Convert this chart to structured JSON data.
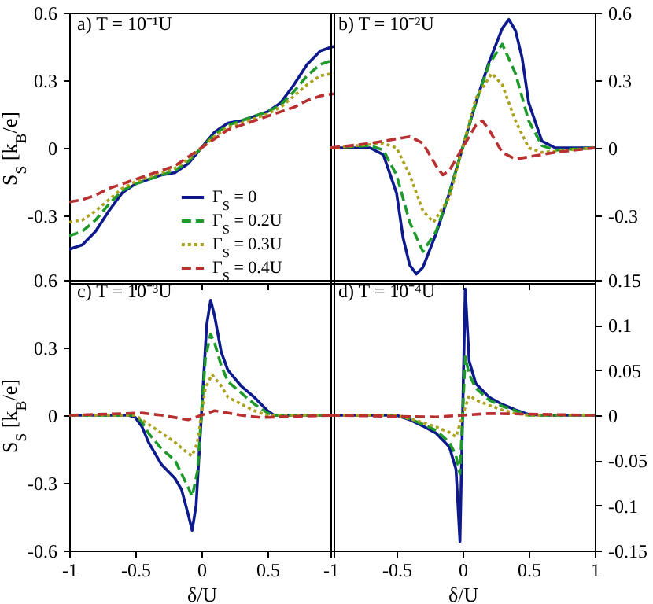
{
  "chart_data": [
    {
      "type": "line",
      "title": "a) T = 10⁻¹U",
      "ylabel": "S$_{S}$ [k$_{B}$/e]",
      "xlim": [
        -1,
        1
      ],
      "xticks": [
        -1,
        -0.5,
        0,
        0.5,
        1
      ],
      "ylim": [
        -0.6,
        0.6
      ],
      "yticks": [
        -0.3,
        0,
        0.3,
        0.6
      ],
      "tick_labels": "y",
      "legend": "bottom right",
      "series": [
        {
          "name": "Γ$_{S}$ = 0",
          "color": "#0d1a8c",
          "line_style": "solid",
          "x": [
            -1,
            -0.9,
            -0.8,
            -0.7,
            -0.6,
            -0.5,
            -0.4,
            -0.3,
            -0.2,
            -0.1,
            0,
            0.1,
            0.2,
            0.3,
            0.4,
            0.5,
            0.6,
            0.7,
            0.8,
            0.9,
            1
          ],
          "values": [
            -0.45,
            -0.43,
            -0.37,
            -0.28,
            -0.2,
            -0.16,
            -0.14,
            -0.12,
            -0.11,
            -0.07,
            0,
            0.07,
            0.11,
            0.12,
            0.14,
            0.16,
            0.2,
            0.28,
            0.37,
            0.43,
            0.45
          ]
        },
        {
          "name": "Γ$_{S}$ = 0.2U",
          "color": "#1f9a2a",
          "line_style": "dashed",
          "x": [
            -1,
            -0.9,
            -0.8,
            -0.7,
            -0.6,
            -0.5,
            -0.4,
            -0.3,
            -0.2,
            -0.1,
            0,
            0.1,
            0.2,
            0.3,
            0.4,
            0.5,
            0.6,
            0.7,
            0.8,
            0.9,
            1
          ],
          "values": [
            -0.39,
            -0.37,
            -0.32,
            -0.25,
            -0.19,
            -0.16,
            -0.14,
            -0.12,
            -0.1,
            -0.06,
            0,
            0.06,
            0.1,
            0.12,
            0.14,
            0.16,
            0.19,
            0.25,
            0.32,
            0.37,
            0.39
          ]
        },
        {
          "name": "Γ$_{S}$ = 0.3U",
          "color": "#aaa21c",
          "line_style": "dotted",
          "x": [
            -1,
            -0.9,
            -0.8,
            -0.7,
            -0.6,
            -0.5,
            -0.4,
            -0.3,
            -0.2,
            -0.1,
            0,
            0.1,
            0.2,
            0.3,
            0.4,
            0.5,
            0.6,
            0.7,
            0.8,
            0.9,
            1
          ],
          "values": [
            -0.33,
            -0.32,
            -0.28,
            -0.23,
            -0.18,
            -0.15,
            -0.13,
            -0.11,
            -0.09,
            -0.05,
            0,
            0.05,
            0.09,
            0.11,
            0.13,
            0.15,
            0.18,
            0.23,
            0.28,
            0.32,
            0.33
          ]
        },
        {
          "name": "Γ$_{S}$ = 0.4U",
          "color": "#b83030",
          "line_style": "dashed",
          "x": [
            -1,
            -0.9,
            -0.8,
            -0.7,
            -0.6,
            -0.5,
            -0.4,
            -0.3,
            -0.2,
            -0.1,
            0,
            0.1,
            0.2,
            0.3,
            0.4,
            0.5,
            0.6,
            0.7,
            0.8,
            0.9,
            1
          ],
          "values": [
            -0.24,
            -0.23,
            -0.21,
            -0.18,
            -0.16,
            -0.14,
            -0.12,
            -0.1,
            -0.08,
            -0.04,
            0,
            0.04,
            0.08,
            0.1,
            0.12,
            0.14,
            0.16,
            0.18,
            0.21,
            0.23,
            0.24
          ]
        }
      ]
    },
    {
      "type": "line",
      "title": "b) T = 10⁻²U",
      "xlim": [
        -1,
        1
      ],
      "xticks": [
        -1,
        -0.5,
        0,
        0.5,
        1
      ],
      "ylim": [
        -0.6,
        0.6
      ],
      "yticks": [
        -0.3,
        0,
        0.3,
        0.6
      ],
      "tick_labels": "y",
      "series": [
        {
          "color": "#0d1a8c",
          "line_style": "solid",
          "x": [
            -1,
            -0.7,
            -0.6,
            -0.5,
            -0.45,
            -0.4,
            -0.35,
            -0.3,
            -0.2,
            -0.1,
            0,
            0.1,
            0.2,
            0.3,
            0.35,
            0.4,
            0.45,
            0.5,
            0.6,
            0.7,
            1
          ],
          "values": [
            0,
            0,
            -0.03,
            -0.2,
            -0.4,
            -0.52,
            -0.56,
            -0.53,
            -0.38,
            -0.2,
            0,
            0.2,
            0.38,
            0.53,
            0.57,
            0.52,
            0.4,
            0.2,
            0.03,
            0,
            0
          ]
        },
        {
          "color": "#1f9a2a",
          "line_style": "dashed",
          "x": [
            -1,
            -0.7,
            -0.6,
            -0.5,
            -0.4,
            -0.3,
            -0.2,
            -0.1,
            0,
            0.1,
            0.2,
            0.3,
            0.4,
            0.5,
            0.6,
            0.7,
            1
          ],
          "values": [
            0,
            0.01,
            -0.01,
            -0.12,
            -0.33,
            -0.46,
            -0.37,
            -0.2,
            0,
            0.2,
            0.37,
            0.46,
            0.33,
            0.12,
            0.01,
            -0.01,
            0
          ]
        },
        {
          "color": "#aaa21c",
          "line_style": "dotted",
          "x": [
            -1,
            -0.8,
            -0.6,
            -0.5,
            -0.4,
            -0.3,
            -0.22,
            -0.1,
            0,
            0.1,
            0.22,
            0.3,
            0.4,
            0.5,
            0.6,
            0.8,
            1
          ],
          "values": [
            0,
            0.01,
            0.02,
            0,
            -0.12,
            -0.28,
            -0.33,
            -0.22,
            0,
            0.22,
            0.33,
            0.28,
            0.12,
            0,
            -0.02,
            -0.01,
            0
          ]
        },
        {
          "color": "#b83030",
          "line_style": "dashed",
          "x": [
            -1,
            -0.7,
            -0.5,
            -0.4,
            -0.3,
            -0.2,
            -0.15,
            -0.1,
            0,
            0.1,
            0.15,
            0.2,
            0.3,
            0.4,
            0.5,
            0.7,
            1
          ],
          "values": [
            0,
            0.02,
            0.04,
            0.05,
            0.02,
            -0.08,
            -0.12,
            -0.1,
            0,
            0.1,
            0.12,
            0.08,
            -0.02,
            -0.05,
            -0.04,
            -0.02,
            0
          ]
        }
      ]
    },
    {
      "type": "line",
      "title": "c) T = 10⁻³U",
      "xlabel": "δ/U",
      "ylabel": "S$_{S}$ [k$_{B}$/e]",
      "xlim": [
        -1,
        1
      ],
      "xticks": [
        -1,
        -0.5,
        0,
        0.5,
        {
          "value": 1,
          "label": null
        }
      ],
      "ylim": [
        -0.6,
        0.6
      ],
      "yticks": [
        -0.6,
        -0.3,
        0,
        0.3,
        {
          "value": 0.6,
          "label": "0.6"
        }
      ],
      "series": [
        {
          "color": "#0d1a8c",
          "line_style": "solid",
          "x": [
            -1,
            -0.55,
            -0.5,
            -0.45,
            -0.4,
            -0.3,
            -0.2,
            -0.15,
            -0.1,
            -0.07,
            -0.04,
            0,
            0.04,
            0.07,
            0.1,
            0.15,
            0.2,
            0.3,
            0.4,
            0.5,
            0.55,
            1
          ],
          "values": [
            0,
            0,
            -0.01,
            -0.05,
            -0.12,
            -0.22,
            -0.28,
            -0.33,
            -0.44,
            -0.51,
            -0.4,
            0,
            0.4,
            0.51,
            0.44,
            0.28,
            0.2,
            0.13,
            0.08,
            0.02,
            0,
            0
          ]
        },
        {
          "color": "#1f9a2a",
          "line_style": "dashed",
          "x": [
            -1,
            -0.5,
            -0.45,
            -0.4,
            -0.3,
            -0.2,
            -0.1,
            -0.07,
            -0.03,
            0,
            0.03,
            0.07,
            0.1,
            0.15,
            0.2,
            0.3,
            0.4,
            0.5,
            0.55,
            1
          ],
          "values": [
            0,
            0,
            -0.03,
            -0.08,
            -0.15,
            -0.2,
            -0.32,
            -0.36,
            -0.25,
            0,
            0.25,
            0.36,
            0.32,
            0.22,
            0.15,
            0.1,
            0.05,
            0.01,
            0,
            0
          ]
        },
        {
          "color": "#aaa21c",
          "line_style": "dotted",
          "x": [
            -1,
            -0.5,
            -0.4,
            -0.3,
            -0.2,
            -0.1,
            -0.07,
            -0.03,
            0,
            0.03,
            0.08,
            0.15,
            0.2,
            0.3,
            0.4,
            0.5,
            1
          ],
          "values": [
            0,
            0,
            -0.04,
            -0.08,
            -0.12,
            -0.17,
            -0.18,
            -0.12,
            0,
            0.12,
            0.18,
            0.13,
            0.08,
            0.05,
            0.02,
            0,
            0
          ]
        },
        {
          "color": "#b83030",
          "line_style": "dashed",
          "x": [
            -1,
            -0.45,
            -0.3,
            -0.1,
            0,
            0.1,
            0.3,
            0.45,
            1
          ],
          "values": [
            0,
            0.01,
            0,
            -0.02,
            0,
            0.02,
            0,
            -0.01,
            0
          ]
        }
      ]
    },
    {
      "type": "line",
      "title": "d) T = 10⁻⁴U",
      "xlabel": "δ/U",
      "xlim": [
        -1,
        1
      ],
      "xticks": [
        -1,
        -0.5,
        0,
        0.5,
        1
      ],
      "ylim": [
        -0.15,
        0.15
      ],
      "yticks": [
        -0.15,
        -0.1,
        -0.05,
        0,
        0.05,
        0.1,
        0.15
      ],
      "series": [
        {
          "color": "#0d1a8c",
          "line_style": "solid",
          "x": [
            -1,
            -0.5,
            -0.4,
            -0.3,
            -0.2,
            -0.1,
            -0.05,
            -0.02,
            0,
            0.02,
            0.05,
            0.1,
            0.2,
            0.3,
            0.4,
            0.5,
            0.6,
            1
          ],
          "values": [
            0,
            0,
            -0.005,
            -0.012,
            -0.02,
            -0.035,
            -0.06,
            -0.14,
            0,
            0.14,
            0.06,
            0.035,
            0.02,
            0.012,
            0.006,
            0.001,
            0,
            0
          ]
        },
        {
          "color": "#1f9a2a",
          "line_style": "dashed",
          "x": [
            -1,
            -0.5,
            -0.4,
            -0.3,
            -0.2,
            -0.1,
            -0.05,
            -0.02,
            0,
            0.02,
            0.05,
            0.1,
            0.2,
            0.3,
            0.4,
            0.5,
            1
          ],
          "values": [
            0,
            0,
            -0.004,
            -0.01,
            -0.017,
            -0.03,
            -0.045,
            -0.065,
            0,
            0.065,
            0.045,
            0.03,
            0.017,
            0.01,
            0.005,
            0,
            0
          ]
        },
        {
          "color": "#aaa21c",
          "line_style": "dotted",
          "x": [
            -1,
            -0.5,
            -0.4,
            -0.3,
            -0.2,
            -0.1,
            -0.05,
            0,
            0.05,
            0.1,
            0.2,
            0.3,
            0.4,
            0.5,
            1
          ],
          "values": [
            0,
            0,
            -0.004,
            -0.008,
            -0.013,
            -0.019,
            -0.024,
            0,
            0.022,
            0.017,
            0.011,
            0.006,
            0.002,
            0,
            0
          ]
        },
        {
          "color": "#b83030",
          "line_style": "dashed",
          "x": [
            -1,
            -0.2,
            0,
            0.2,
            1
          ],
          "values": [
            0,
            -0.002,
            0,
            0.002,
            0
          ]
        }
      ]
    }
  ]
}
